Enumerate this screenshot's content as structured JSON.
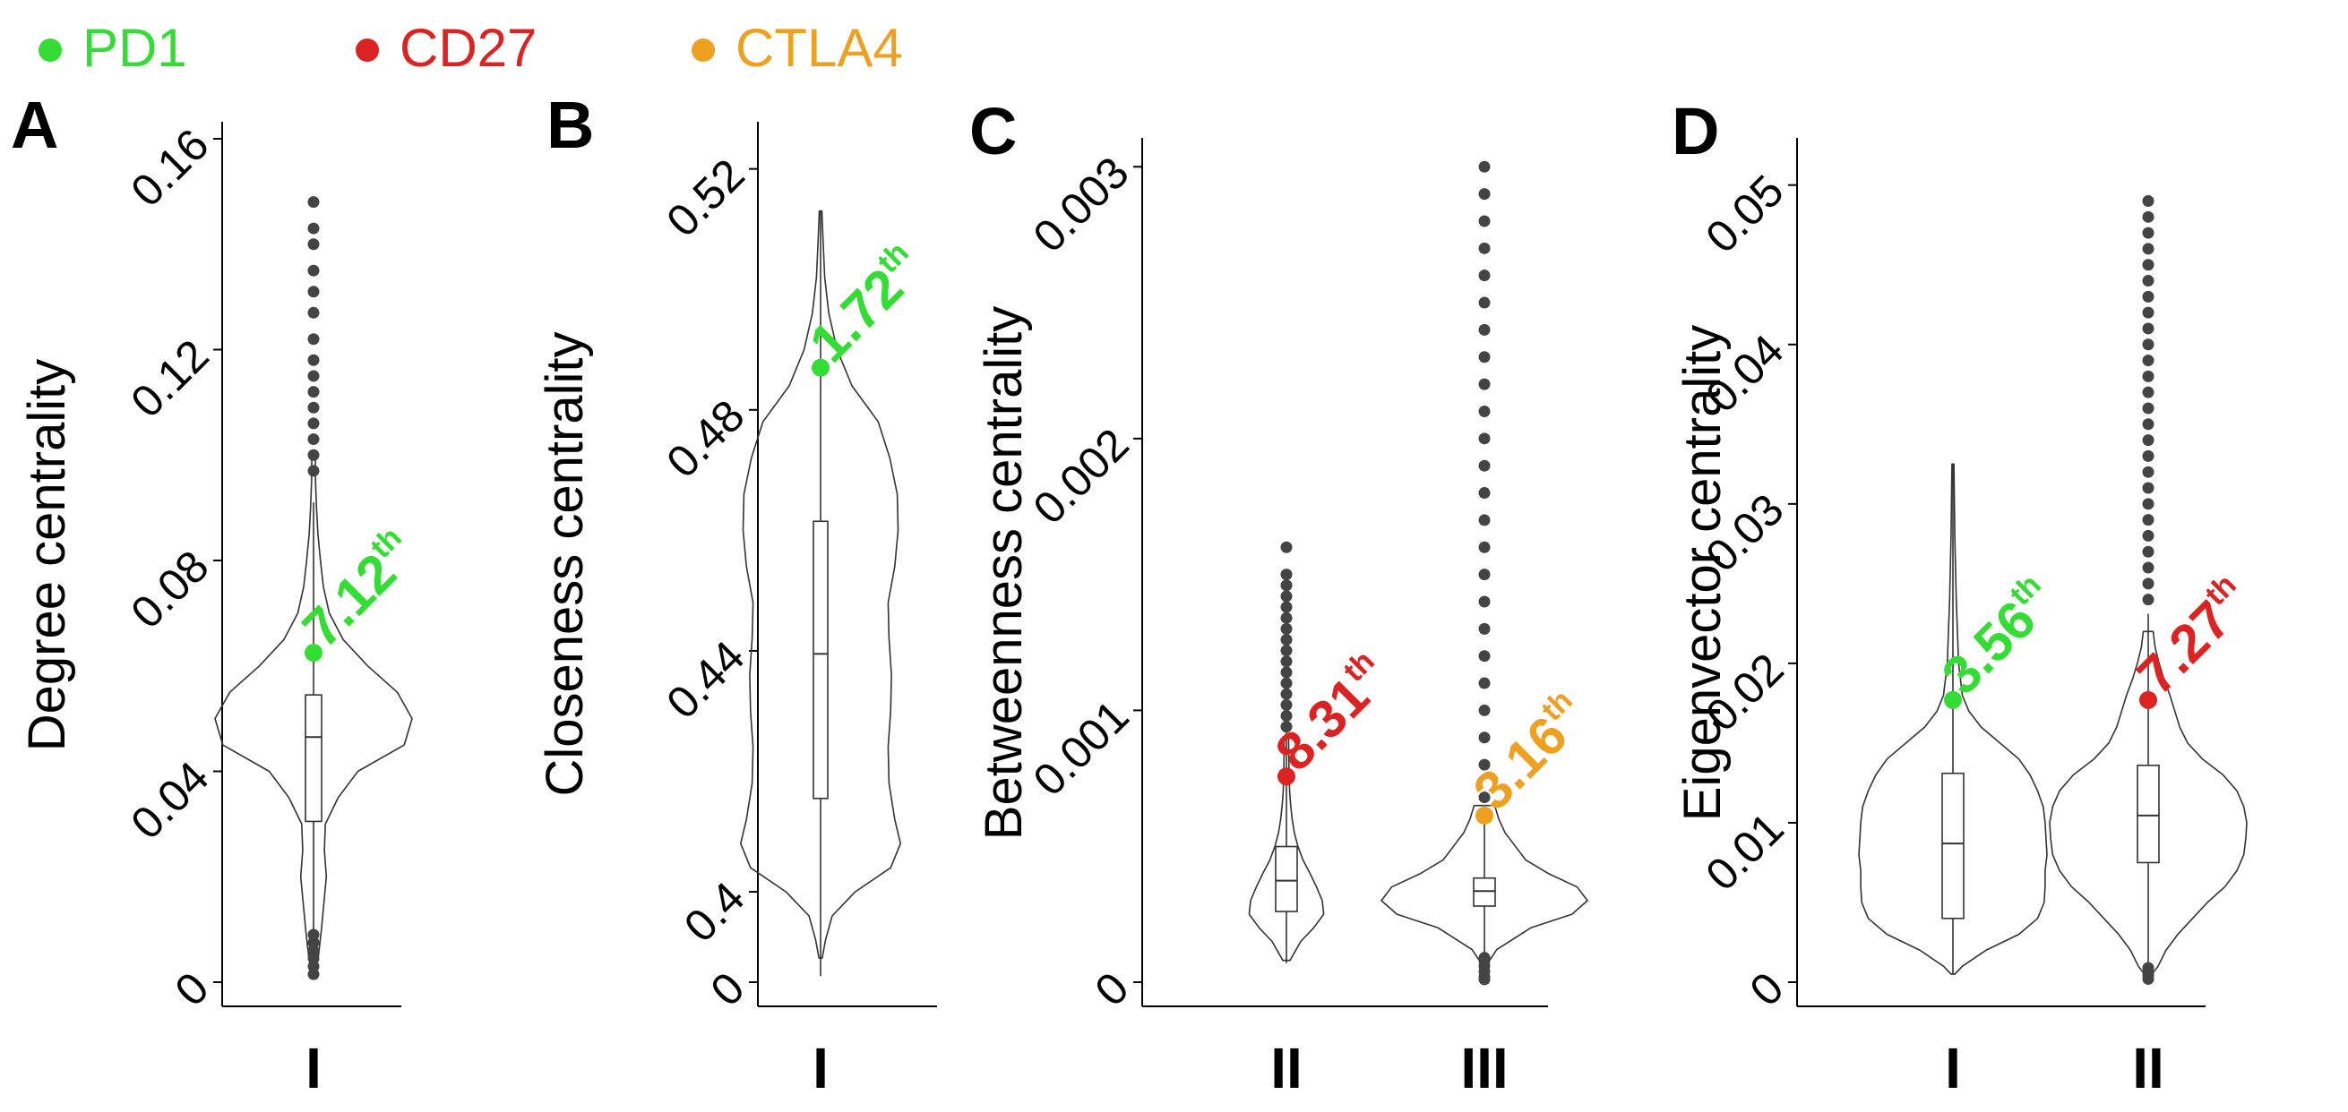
{
  "legend": [
    {
      "name": "PD1",
      "color": "#33dd33"
    },
    {
      "name": "CD27",
      "color": "#dd2222"
    },
    {
      "name": "CTLA4",
      "color": "#f0a020"
    }
  ],
  "colors": {
    "PD1": "#33dd33",
    "CD27": "#dd2222",
    "CTLA4": "#f0a020",
    "axis": "#000000",
    "outline": "#333333",
    "outlier": "#444444"
  },
  "chart_data": [
    {
      "panel": "A",
      "type": "violin",
      "ylabel": "Degree centrality",
      "ylim": [
        0,
        0.16
      ],
      "yticks": [
        0,
        0.04,
        0.08,
        0.12,
        0.16
      ],
      "ytick_labels": [
        "0",
        "0.04",
        "0.08",
        "0.12",
        "0.16"
      ],
      "groups": [
        {
          "label": "I",
          "box": {
            "q1": 0.0305,
            "median": 0.0465,
            "q3": 0.0545,
            "whisker_low": 0.003,
            "whisker_high": 0.091
          },
          "density": [
            [
              0.002,
              0.02
            ],
            [
              0.005,
              0.05
            ],
            [
              0.01,
              0.08
            ],
            [
              0.014,
              0.1
            ],
            [
              0.02,
              0.13
            ],
            [
              0.025,
              0.11
            ],
            [
              0.03,
              0.12
            ],
            [
              0.035,
              0.25
            ],
            [
              0.04,
              0.45
            ],
            [
              0.045,
              0.92
            ],
            [
              0.05,
              1.0
            ],
            [
              0.055,
              0.85
            ],
            [
              0.06,
              0.55
            ],
            [
              0.065,
              0.3
            ],
            [
              0.07,
              0.16
            ],
            [
              0.075,
              0.1
            ],
            [
              0.08,
              0.07
            ],
            [
              0.085,
              0.045
            ],
            [
              0.09,
              0.03
            ],
            [
              0.095,
              0.02
            ],
            [
              0.1,
              0.018
            ]
          ],
          "outliers": [
            0.097,
            0.1,
            0.103,
            0.106,
            0.109,
            0.112,
            0.115,
            0.118,
            0.122,
            0.127,
            0.131,
            0.135,
            0.14,
            0.143,
            0.148
          ],
          "outliers_low": [
            0.0015,
            0.003,
            0.0045,
            0.006,
            0.0075,
            0.009
          ],
          "highlight": {
            "gene": "PD1",
            "value": 0.0625,
            "label_num": "7.12",
            "label_sup": "th"
          }
        }
      ]
    },
    {
      "panel": "B",
      "type": "violin",
      "ylabel": "Closeness centrality",
      "ylim": [
        0.385,
        0.525
      ],
      "yticks": [
        0.4,
        0.44,
        0.48,
        0.52
      ],
      "ytick_labels": [
        "0.4",
        "0.44",
        "0.48",
        "0.52"
      ],
      "extra_ticks": [
        {
          "value": 0.385,
          "label": "0"
        }
      ],
      "groups": [
        {
          "label": "I",
          "box": {
            "q1": 0.4155,
            "median": 0.4395,
            "q3": 0.4615,
            "whisker_low": 0.386,
            "whisker_high": 0.513
          },
          "density": [
            [
              0.389,
              0.02
            ],
            [
              0.392,
              0.06
            ],
            [
              0.396,
              0.14
            ],
            [
              0.4,
              0.42
            ],
            [
              0.404,
              0.85
            ],
            [
              0.408,
              0.97
            ],
            [
              0.412,
              0.9
            ],
            [
              0.418,
              0.83
            ],
            [
              0.424,
              0.82
            ],
            [
              0.43,
              0.85
            ],
            [
              0.436,
              0.86
            ],
            [
              0.442,
              0.83
            ],
            [
              0.448,
              0.82
            ],
            [
              0.454,
              0.9
            ],
            [
              0.46,
              0.94
            ],
            [
              0.466,
              0.93
            ],
            [
              0.472,
              0.84
            ],
            [
              0.478,
              0.7
            ],
            [
              0.484,
              0.38
            ],
            [
              0.49,
              0.2
            ],
            [
              0.496,
              0.1
            ],
            [
              0.502,
              0.05
            ],
            [
              0.508,
              0.03
            ],
            [
              0.513,
              0.015
            ]
          ],
          "outliers": [],
          "outliers_low": [],
          "highlight": {
            "gene": "PD1",
            "value": 0.487,
            "label_num": "1.72",
            "label_sup": "th"
          }
        }
      ]
    },
    {
      "panel": "C",
      "type": "violin",
      "ylabel": "Betweenness centrality",
      "ylim": [
        0,
        0.00307
      ],
      "yticks": [
        0,
        0.001,
        0.002,
        0.003
      ],
      "ytick_labels": [
        "0",
        "0.001",
        "0.002",
        "0.003"
      ],
      "groups": [
        {
          "label": "II",
          "box": {
            "q1": 0.00026,
            "median": 0.0003735,
            "q3": 0.000499,
            "whisker_low": 7e-05,
            "whisker_high": 0.00092
          },
          "density": [
            [
              8e-05,
              0.05
            ],
            [
              0.00015,
              0.2
            ],
            [
              0.0002,
              0.38
            ],
            [
              0.00025,
              0.52
            ],
            [
              0.0003,
              0.5
            ],
            [
              0.00035,
              0.42
            ],
            [
              0.0004,
              0.33
            ],
            [
              0.00045,
              0.23
            ],
            [
              0.0005,
              0.16
            ],
            [
              0.00055,
              0.11
            ],
            [
              0.0006,
              0.08
            ],
            [
              0.00065,
              0.06
            ],
            [
              0.0007,
              0.045
            ],
            [
              0.0008,
              0.035
            ],
            [
              0.0009,
              0.03
            ]
          ],
          "outliers": [
            0.00094,
            0.00098,
            0.00102,
            0.00106,
            0.0011,
            0.00114,
            0.00118,
            0.00122,
            0.00126,
            0.0013,
            0.00134,
            0.00138,
            0.00142,
            0.00146,
            0.0015,
            0.0016
          ],
          "outliers_low": [],
          "highlight": {
            "gene": "CD27",
            "value": 0.000757,
            "label_num": "8.31",
            "label_sup": "th"
          }
        },
        {
          "label": "III",
          "box": {
            "q1": 0.00028,
            "median": 0.000335,
            "q3": 0.000383,
            "whisker_low": 4e-05,
            "whisker_high": 0.00062
          },
          "density": [
            [
              3e-05,
              0.02
            ],
            [
              8e-05,
              0.05
            ],
            [
              0.00012,
              0.12
            ],
            [
              0.0002,
              0.45
            ],
            [
              0.00025,
              0.85
            ],
            [
              0.0003,
              1.0
            ],
            [
              0.00035,
              0.9
            ],
            [
              0.0004,
              0.62
            ],
            [
              0.00045,
              0.4
            ],
            [
              0.0005,
              0.3
            ],
            [
              0.00055,
              0.2
            ],
            [
              0.0006,
              0.14
            ],
            [
              0.00065,
              0.1
            ]
          ],
          "outliers": [
            0.00068,
            0.0008,
            0.0009,
            0.001,
            0.0011,
            0.0012,
            0.0013,
            0.0014,
            0.0015,
            0.0016,
            0.0017,
            0.0018,
            0.0019,
            0.002,
            0.0021,
            0.0022,
            0.0023,
            0.0024,
            0.0025,
            0.0026,
            0.0027,
            0.0028,
            0.0029,
            0.003
          ],
          "outliers_low": [
            1e-05,
            2e-05,
            4e-05,
            6e-05,
            9e-05
          ],
          "highlight": {
            "gene": "CTLA4",
            "value": 0.000613,
            "label_num": "3.16",
            "label_sup": "th"
          }
        }
      ]
    },
    {
      "panel": "D",
      "type": "violin",
      "ylabel": "Eigenvector centrality",
      "ylim": [
        0,
        0.0515
      ],
      "yticks": [
        0,
        0.01,
        0.02,
        0.03,
        0.04,
        0.05
      ],
      "ytick_labels": [
        "0",
        "0.01",
        "0.02",
        "0.03",
        "0.04",
        "0.05"
      ],
      "groups": [
        {
          "label": "I",
          "box": {
            "q1": 0.004,
            "median": 0.0087,
            "q3": 0.0131,
            "whisker_low": 0.0005,
            "whisker_high": 0.0325
          },
          "density": [
            [
              0.0005,
              0.02
            ],
            [
              0.001,
              0.1
            ],
            [
              0.002,
              0.35
            ],
            [
              0.003,
              0.7
            ],
            [
              0.004,
              0.9
            ],
            [
              0.005,
              0.97
            ],
            [
              0.006,
              0.98
            ],
            [
              0.007,
              0.98
            ],
            [
              0.008,
              1.0
            ],
            [
              0.009,
              0.99
            ],
            [
              0.01,
              0.98
            ],
            [
              0.011,
              0.96
            ],
            [
              0.012,
              0.9
            ],
            [
              0.013,
              0.82
            ],
            [
              0.014,
              0.7
            ],
            [
              0.015,
              0.5
            ],
            [
              0.016,
              0.3
            ],
            [
              0.017,
              0.17
            ],
            [
              0.018,
              0.1
            ],
            [
              0.02,
              0.06
            ],
            [
              0.024,
              0.035
            ],
            [
              0.028,
              0.02
            ],
            [
              0.0325,
              0.01
            ]
          ],
          "outliers": [],
          "outliers_low": [],
          "highlight": {
            "gene": "PD1",
            "value": 0.0177,
            "label_num": "3.56",
            "label_sup": "th"
          }
        },
        {
          "label": "II",
          "box": {
            "q1": 0.0075,
            "median": 0.01045,
            "q3": 0.0136,
            "whisker_low": 0.0006,
            "whisker_high": 0.0231
          },
          "density": [
            [
              0.0006,
              0.05
            ],
            [
              0.001,
              0.1
            ],
            [
              0.002,
              0.18
            ],
            [
              0.003,
              0.3
            ],
            [
              0.004,
              0.45
            ],
            [
              0.005,
              0.6
            ],
            [
              0.006,
              0.78
            ],
            [
              0.007,
              0.9
            ],
            [
              0.008,
              0.97
            ],
            [
              0.009,
              0.99
            ],
            [
              0.01,
              1.0
            ],
            [
              0.011,
              0.97
            ],
            [
              0.012,
              0.9
            ],
            [
              0.013,
              0.76
            ],
            [
              0.014,
              0.55
            ],
            [
              0.015,
              0.4
            ],
            [
              0.016,
              0.32
            ],
            [
              0.017,
              0.27
            ],
            [
              0.018,
              0.22
            ],
            [
              0.019,
              0.16
            ],
            [
              0.02,
              0.11
            ],
            [
              0.021,
              0.07
            ],
            [
              0.022,
              0.05
            ]
          ],
          "outliers": [
            0.024,
            0.025,
            0.026,
            0.027,
            0.028,
            0.029,
            0.03,
            0.031,
            0.032,
            0.033,
            0.034,
            0.035,
            0.036,
            0.037,
            0.038,
            0.039,
            0.04,
            0.041,
            0.042,
            0.043,
            0.044,
            0.045,
            0.046,
            0.047,
            0.048,
            0.049
          ],
          "outliers_low": [
            0.0002,
            0.0004,
            0.0006,
            0.0009
          ],
          "highlight": {
            "gene": "CD27",
            "value": 0.0177,
            "label_num": "7.27",
            "label_sup": "th"
          }
        }
      ]
    }
  ]
}
